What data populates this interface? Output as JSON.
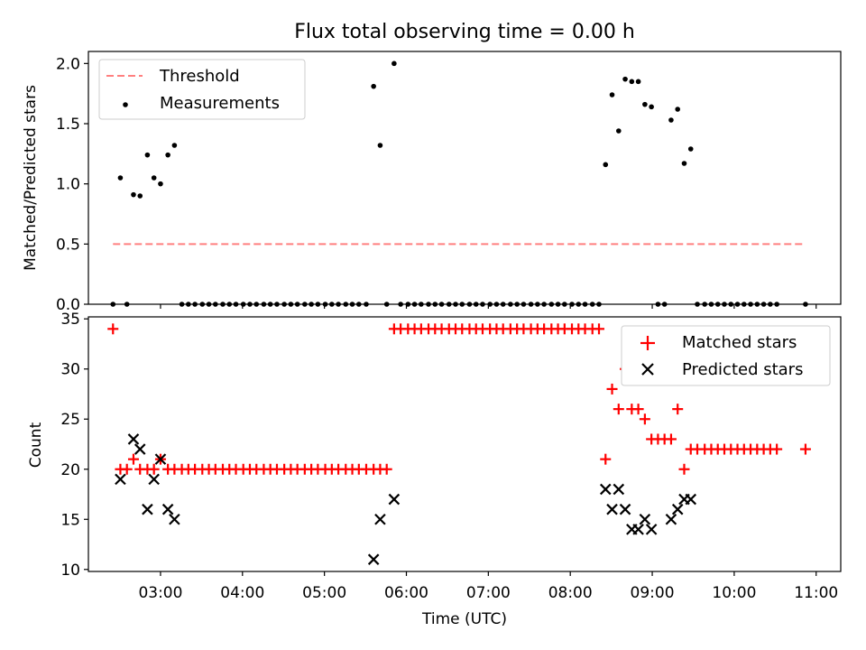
{
  "figure": {
    "title": "Flux total observing time = 0.00 h"
  },
  "chart_data": [
    {
      "type": "scatter",
      "name": "ratio-panel",
      "ylabel": "Matched/Predicted stars",
      "xlabel": "",
      "xlim": [
        2.12,
        11.3
      ],
      "ylim": [
        0,
        2.1
      ],
      "yticks": [
        0.0,
        0.5,
        1.0,
        1.5,
        2.0
      ],
      "ytick_labels": [
        "0.0",
        "0.5",
        "1.0",
        "1.5",
        "2.0"
      ],
      "legend": {
        "position": "upper-left",
        "entries": [
          "Threshold",
          "Measurements"
        ]
      },
      "colors": {
        "threshold": "#ff8080",
        "measurements": "#000000"
      },
      "threshold": {
        "name": "Threshold",
        "value": 0.5,
        "x_start": 2.42,
        "x_end": 10.87
      },
      "measurements": {
        "name": "Measurements",
        "points": [
          [
            2.42,
            0
          ],
          [
            2.59,
            0
          ],
          [
            2.51,
            1.05
          ],
          [
            2.67,
            0.91
          ],
          [
            2.75,
            0.9
          ],
          [
            2.84,
            1.24
          ],
          [
            2.92,
            1.05
          ],
          [
            3.0,
            1.0
          ],
          [
            3.09,
            1.24
          ],
          [
            3.17,
            1.32
          ],
          [
            3.26,
            0
          ],
          [
            3.34,
            0
          ],
          [
            3.42,
            0
          ],
          [
            3.51,
            0
          ],
          [
            3.59,
            0
          ],
          [
            3.67,
            0
          ],
          [
            3.76,
            0
          ],
          [
            3.84,
            0
          ],
          [
            3.92,
            0
          ],
          [
            4.01,
            0
          ],
          [
            4.09,
            0
          ],
          [
            4.17,
            0
          ],
          [
            4.26,
            0
          ],
          [
            4.34,
            0
          ],
          [
            4.42,
            0
          ],
          [
            4.51,
            0
          ],
          [
            4.59,
            0
          ],
          [
            4.67,
            0
          ],
          [
            4.76,
            0
          ],
          [
            4.84,
            0
          ],
          [
            4.92,
            0
          ],
          [
            5.01,
            0
          ],
          [
            5.09,
            0
          ],
          [
            5.17,
            0
          ],
          [
            5.26,
            0
          ],
          [
            5.34,
            0
          ],
          [
            5.42,
            0
          ],
          [
            5.51,
            0
          ],
          [
            5.6,
            1.81
          ],
          [
            5.68,
            1.32
          ],
          [
            5.76,
            0
          ],
          [
            5.85,
            2.0
          ],
          [
            5.93,
            0
          ],
          [
            6.02,
            0
          ],
          [
            6.1,
            0
          ],
          [
            6.18,
            0
          ],
          [
            6.27,
            0
          ],
          [
            6.35,
            0
          ],
          [
            6.43,
            0
          ],
          [
            6.52,
            0
          ],
          [
            6.6,
            0
          ],
          [
            6.68,
            0
          ],
          [
            6.77,
            0
          ],
          [
            6.85,
            0
          ],
          [
            6.93,
            0
          ],
          [
            7.02,
            0
          ],
          [
            7.1,
            0
          ],
          [
            7.18,
            0
          ],
          [
            7.27,
            0
          ],
          [
            7.35,
            0
          ],
          [
            7.43,
            0
          ],
          [
            7.52,
            0
          ],
          [
            7.6,
            0
          ],
          [
            7.68,
            0
          ],
          [
            7.77,
            0
          ],
          [
            7.85,
            0
          ],
          [
            7.93,
            0
          ],
          [
            8.02,
            0
          ],
          [
            8.1,
            0
          ],
          [
            8.18,
            0
          ],
          [
            8.27,
            0
          ],
          [
            8.35,
            0
          ],
          [
            8.43,
            1.16
          ],
          [
            8.51,
            1.74
          ],
          [
            8.59,
            1.44
          ],
          [
            8.67,
            1.87
          ],
          [
            8.75,
            1.85
          ],
          [
            8.83,
            1.85
          ],
          [
            8.91,
            1.66
          ],
          [
            8.99,
            1.64
          ],
          [
            9.07,
            0
          ],
          [
            9.15,
            0
          ],
          [
            9.23,
            1.53
          ],
          [
            9.31,
            1.62
          ],
          [
            9.39,
            1.17
          ],
          [
            9.47,
            1.29
          ],
          [
            9.55,
            0
          ],
          [
            9.64,
            0
          ],
          [
            9.72,
            0
          ],
          [
            9.8,
            0
          ],
          [
            9.88,
            0
          ],
          [
            9.96,
            0
          ],
          [
            10.04,
            0
          ],
          [
            10.12,
            0
          ],
          [
            10.2,
            0
          ],
          [
            10.28,
            0
          ],
          [
            10.36,
            0
          ],
          [
            10.44,
            0
          ],
          [
            10.52,
            0
          ],
          [
            10.87,
            0
          ]
        ]
      }
    },
    {
      "type": "scatter",
      "name": "count-panel",
      "xlabel": "Time (UTC)",
      "ylabel": "Count",
      "xlim": [
        2.12,
        11.3
      ],
      "ylim": [
        9.8,
        35.2
      ],
      "xticks": [
        3,
        4,
        5,
        6,
        7,
        8,
        9,
        10,
        11
      ],
      "xtick_labels": [
        "03:00",
        "04:00",
        "05:00",
        "06:00",
        "07:00",
        "08:00",
        "09:00",
        "10:00",
        "11:00"
      ],
      "yticks": [
        10,
        15,
        20,
        25,
        30,
        35
      ],
      "ytick_labels": [
        "10",
        "15",
        "20",
        "25",
        "30",
        "35"
      ],
      "legend": {
        "position": "upper-right",
        "entries": [
          "Matched stars",
          "Predicted stars"
        ]
      },
      "colors": {
        "matched": "#ff0000",
        "predicted": "#000000"
      },
      "series": [
        {
          "name": "Matched stars",
          "marker": "plus",
          "points": [
            [
              2.42,
              34
            ],
            [
              2.51,
              20
            ],
            [
              2.59,
              20
            ],
            [
              2.67,
              21
            ],
            [
              2.75,
              20
            ],
            [
              2.84,
              20
            ],
            [
              2.92,
              20
            ],
            [
              3.0,
              21
            ],
            [
              3.09,
              20
            ],
            [
              3.17,
              20
            ],
            [
              3.26,
              20
            ],
            [
              3.34,
              20
            ],
            [
              3.42,
              20
            ],
            [
              3.51,
              20
            ],
            [
              3.59,
              20
            ],
            [
              3.67,
              20
            ],
            [
              3.76,
              20
            ],
            [
              3.84,
              20
            ],
            [
              3.92,
              20
            ],
            [
              4.01,
              20
            ],
            [
              4.09,
              20
            ],
            [
              4.17,
              20
            ],
            [
              4.26,
              20
            ],
            [
              4.34,
              20
            ],
            [
              4.42,
              20
            ],
            [
              4.51,
              20
            ],
            [
              4.59,
              20
            ],
            [
              4.67,
              20
            ],
            [
              4.76,
              20
            ],
            [
              4.84,
              20
            ],
            [
              4.92,
              20
            ],
            [
              5.01,
              20
            ],
            [
              5.09,
              20
            ],
            [
              5.17,
              20
            ],
            [
              5.26,
              20
            ],
            [
              5.34,
              20
            ],
            [
              5.42,
              20
            ],
            [
              5.51,
              20
            ],
            [
              5.6,
              20
            ],
            [
              5.68,
              20
            ],
            [
              5.76,
              20
            ],
            [
              5.85,
              34
            ],
            [
              5.93,
              34
            ],
            [
              6.02,
              34
            ],
            [
              6.1,
              34
            ],
            [
              6.18,
              34
            ],
            [
              6.27,
              34
            ],
            [
              6.35,
              34
            ],
            [
              6.43,
              34
            ],
            [
              6.52,
              34
            ],
            [
              6.6,
              34
            ],
            [
              6.68,
              34
            ],
            [
              6.77,
              34
            ],
            [
              6.85,
              34
            ],
            [
              6.93,
              34
            ],
            [
              7.02,
              34
            ],
            [
              7.1,
              34
            ],
            [
              7.18,
              34
            ],
            [
              7.27,
              34
            ],
            [
              7.35,
              34
            ],
            [
              7.43,
              34
            ],
            [
              7.52,
              34
            ],
            [
              7.6,
              34
            ],
            [
              7.68,
              34
            ],
            [
              7.77,
              34
            ],
            [
              7.85,
              34
            ],
            [
              7.93,
              34
            ],
            [
              8.02,
              34
            ],
            [
              8.1,
              34
            ],
            [
              8.18,
              34
            ],
            [
              8.27,
              34
            ],
            [
              8.35,
              34
            ],
            [
              8.43,
              21
            ],
            [
              8.51,
              28
            ],
            [
              8.59,
              26
            ],
            [
              8.67,
              30
            ],
            [
              8.75,
              26
            ],
            [
              8.83,
              26
            ],
            [
              8.91,
              25
            ],
            [
              8.99,
              23
            ],
            [
              9.07,
              23
            ],
            [
              9.15,
              23
            ],
            [
              9.23,
              23
            ],
            [
              9.31,
              26
            ],
            [
              9.39,
              20
            ],
            [
              9.47,
              22
            ],
            [
              9.55,
              22
            ],
            [
              9.64,
              22
            ],
            [
              9.72,
              22
            ],
            [
              9.8,
              22
            ],
            [
              9.88,
              22
            ],
            [
              9.96,
              22
            ],
            [
              10.04,
              22
            ],
            [
              10.12,
              22
            ],
            [
              10.2,
              22
            ],
            [
              10.28,
              22
            ],
            [
              10.36,
              22
            ],
            [
              10.44,
              22
            ],
            [
              10.52,
              22
            ],
            [
              10.87,
              22
            ]
          ]
        },
        {
          "name": "Predicted stars",
          "marker": "x",
          "points": [
            [
              2.51,
              19
            ],
            [
              2.67,
              23
            ],
            [
              2.75,
              22
            ],
            [
              2.84,
              16
            ],
            [
              2.92,
              19
            ],
            [
              3.0,
              21
            ],
            [
              3.09,
              16
            ],
            [
              3.17,
              15
            ],
            [
              5.6,
              11
            ],
            [
              5.68,
              15
            ],
            [
              5.85,
              17
            ],
            [
              8.43,
              18
            ],
            [
              8.51,
              16
            ],
            [
              8.59,
              18
            ],
            [
              8.67,
              16
            ],
            [
              8.75,
              14
            ],
            [
              8.83,
              14
            ],
            [
              8.91,
              15
            ],
            [
              8.99,
              14
            ],
            [
              9.23,
              15
            ],
            [
              9.31,
              16
            ],
            [
              9.39,
              17
            ],
            [
              9.47,
              17
            ]
          ]
        }
      ]
    }
  ]
}
